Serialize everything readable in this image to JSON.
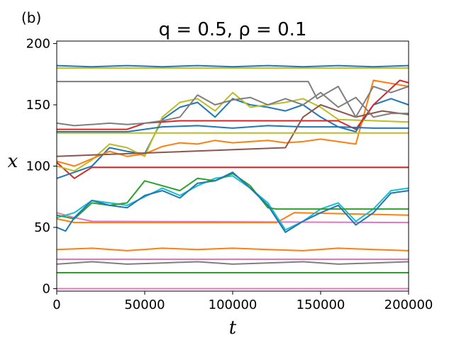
{
  "chart_data": {
    "type": "line",
    "panel_label": "(b)",
    "title": "q = 0.5, ρ = 0.1",
    "xlabel": "t",
    "ylabel": "x",
    "xlim": [
      0,
      200000
    ],
    "ylim": [
      -2,
      202
    ],
    "xticks": [
      0,
      50000,
      100000,
      150000,
      200000
    ],
    "yticks": [
      0,
      50,
      100,
      150,
      200
    ],
    "grid": false,
    "series": [
      {
        "color": "#e377c2",
        "x": [
          0,
          200000
        ],
        "y": [
          0,
          0
        ]
      },
      {
        "color": "#2ca02c",
        "x": [
          0,
          200000
        ],
        "y": [
          13,
          13
        ]
      },
      {
        "color": "#7f7f7f",
        "x": [
          0,
          20000,
          40000,
          60000,
          80000,
          100000,
          120000,
          140000,
          160000,
          180000,
          200000
        ],
        "y": [
          20,
          22,
          20,
          21,
          22,
          20,
          21,
          22,
          20,
          21,
          22
        ]
      },
      {
        "color": "#e377c2",
        "x": [
          0,
          200000
        ],
        "y": [
          24,
          24
        ]
      },
      {
        "color": "#ff7f0e",
        "x": [
          0,
          20000,
          40000,
          60000,
          80000,
          100000,
          120000,
          140000,
          160000,
          180000,
          200000
        ],
        "y": [
          32,
          33,
          31,
          33,
          32,
          33,
          32,
          31,
          33,
          32,
          31
        ]
      },
      {
        "color": "#e377c2",
        "x": [
          0,
          10000,
          20000,
          200000
        ],
        "y": [
          62,
          58,
          55,
          54
        ]
      },
      {
        "color": "#ff7f0e",
        "x": [
          0,
          10000,
          125000,
          135000,
          200000
        ],
        "y": [
          57,
          54,
          54,
          62,
          60
        ]
      },
      {
        "color": "#17becf",
        "x": [
          0,
          10000,
          20000,
          30000,
          40000,
          50000,
          60000,
          70000,
          80000,
          90000,
          100000,
          110000,
          120000,
          130000,
          140000,
          150000,
          160000,
          170000,
          180000,
          190000,
          200000
        ],
        "y": [
          58,
          62,
          72,
          70,
          68,
          75,
          82,
          76,
          84,
          90,
          92,
          82,
          70,
          48,
          55,
          65,
          70,
          55,
          65,
          80,
          82
        ]
      },
      {
        "color": "#2ca02c",
        "x": [
          0,
          10000,
          20000,
          30000,
          40000,
          50000,
          60000,
          70000,
          80000,
          90000,
          100000,
          110000,
          120000,
          125000,
          200000
        ],
        "y": [
          60,
          57,
          70,
          68,
          70,
          88,
          84,
          80,
          90,
          88,
          94,
          84,
          66,
          65,
          65
        ]
      },
      {
        "color": "#1f77b4",
        "x": [
          0,
          5000,
          10000,
          20000,
          30000,
          40000,
          50000,
          60000,
          70000,
          80000,
          90000,
          100000,
          110000,
          120000,
          130000,
          140000,
          150000,
          160000,
          170000,
          180000,
          190000,
          200000
        ],
        "y": [
          50,
          47,
          58,
          72,
          68,
          66,
          76,
          80,
          74,
          86,
          88,
          95,
          82,
          68,
          46,
          55,
          62,
          68,
          52,
          62,
          78,
          80
        ]
      },
      {
        "color": "#d62728",
        "x": [
          0,
          10000,
          20000,
          200000
        ],
        "y": [
          103,
          90,
          99,
          99
        ]
      },
      {
        "color": "#1f77b4",
        "x": [
          0,
          10000,
          20000,
          30000,
          40000,
          50000,
          60000,
          70000,
          80000,
          90000,
          100000,
          110000,
          120000,
          130000,
          140000,
          150000,
          160000,
          170000,
          180000,
          190000,
          200000
        ],
        "y": [
          90,
          95,
          100,
          115,
          112,
          110,
          138,
          148,
          152,
          140,
          155,
          150,
          148,
          145,
          150,
          140,
          132,
          128,
          150,
          155,
          150
        ]
      },
      {
        "color": "#bcbd22",
        "x": [
          0,
          10000,
          20000,
          30000,
          40000,
          50000,
          60000,
          70000,
          80000,
          90000,
          100000,
          110000,
          120000,
          130000,
          140000,
          150000,
          160000,
          200000
        ],
        "y": [
          100,
          96,
          105,
          118,
          115,
          108,
          140,
          152,
          155,
          145,
          160,
          148,
          150,
          152,
          155,
          148,
          138,
          136
        ]
      },
      {
        "color": "#ff7f0e",
        "x": [
          0,
          10000,
          20000,
          30000,
          40000,
          50000,
          60000,
          70000,
          80000,
          90000,
          100000,
          110000,
          120000,
          130000,
          140000,
          150000,
          160000,
          170000,
          180000,
          200000
        ],
        "y": [
          104,
          100,
          106,
          112,
          108,
          110,
          116,
          119,
          118,
          121,
          119,
          120,
          121,
          119,
          120,
          122,
          120,
          118,
          170,
          165
        ]
      },
      {
        "color": "#d62728",
        "x": [
          0,
          40000,
          50000,
          70000,
          160000,
          170000,
          180000,
          195000,
          200000
        ],
        "y": [
          130,
          130,
          135,
          137,
          137,
          130,
          150,
          170,
          168
        ]
      },
      {
        "color": "#1f77b4",
        "x": [
          0,
          40000,
          60000,
          80000,
          100000,
          120000,
          140000,
          160000,
          180000,
          200000
        ],
        "y": [
          128,
          128,
          132,
          133,
          131,
          133,
          132,
          132,
          131,
          131
        ]
      },
      {
        "color": "#8c564b",
        "x": [
          0,
          130000,
          140000,
          150000,
          170000,
          185000,
          200000
        ],
        "y": [
          108,
          115,
          140,
          150,
          140,
          145,
          142
        ]
      },
      {
        "color": "#bcbd22",
        "x": [
          0,
          30000,
          60000,
          200000
        ],
        "y": [
          127,
          127,
          127,
          127
        ]
      },
      {
        "color": "#7f7f7f",
        "x": [
          0,
          10000,
          20000,
          30000,
          40000,
          50000,
          60000,
          70000,
          80000,
          90000,
          100000,
          110000,
          120000,
          130000,
          140000,
          150000,
          160000,
          170000,
          180000,
          190000,
          200000
        ],
        "y": [
          135,
          133,
          134,
          135,
          134,
          135,
          137,
          140,
          158,
          150,
          154,
          156,
          150,
          155,
          150,
          160,
          148,
          156,
          140,
          143,
          143
        ]
      },
      {
        "color": "#7f7f7f",
        "x": [
          0,
          143000,
          148000,
          160000,
          170000,
          180000,
          190000,
          200000
        ],
        "y": [
          169,
          169,
          155,
          165,
          140,
          165,
          160,
          165
        ]
      },
      {
        "color": "#bcbd22",
        "x": [
          0,
          200000
        ],
        "y": [
          180,
          180
        ]
      },
      {
        "color": "#1f77b4",
        "x": [
          0,
          20000,
          40000,
          60000,
          80000,
          100000,
          120000,
          140000,
          160000,
          180000,
          200000
        ],
        "y": [
          182,
          181,
          182,
          181,
          182,
          181,
          182,
          181,
          182,
          181,
          182
        ]
      }
    ]
  }
}
